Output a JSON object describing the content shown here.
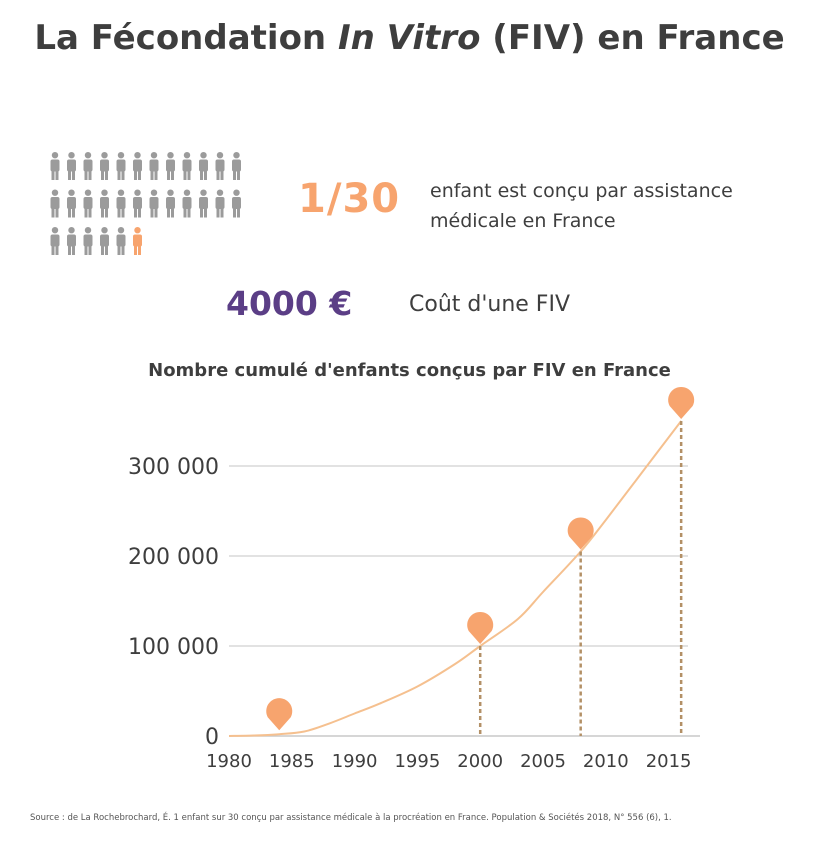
{
  "header": {
    "title_part1": "La Fécondation ",
    "title_italic": "In Vitro",
    "title_part2": " (FIV) en France"
  },
  "stats": {
    "fraction": "1/30",
    "fraction_text": "enfant est conçu par assistance médicale en France",
    "people_total": 30,
    "people_highlighted": 1,
    "person_color": "#9b9b9b",
    "highlight_color": "#f7a46e",
    "cost_value": "4000 €",
    "cost_label": "Coût d'une FIV"
  },
  "colors": {
    "accent_orange": "#f7a46e",
    "accent_purple": "#5b3e86",
    "marker_line": "#b39066",
    "text": "#3e3e3e"
  },
  "chart_data": {
    "type": "line",
    "title": "Nombre cumulé d'enfants conçus par FIV en France",
    "xlabel": "",
    "ylabel": "",
    "x_ticks": [
      1980,
      1985,
      1990,
      1995,
      2000,
      2005,
      2010,
      2015
    ],
    "y_ticks": [
      0,
      100000,
      200000,
      300000
    ],
    "y_tick_labels": [
      "0",
      "100 000",
      "200 000",
      "300 000"
    ],
    "xlim": [
      1980,
      2017.5
    ],
    "ylim": [
      0,
      360000
    ],
    "grid": true,
    "series": [
      {
        "x": [
          1980,
          1982,
          1984,
          1986,
          1988,
          1990,
          1992,
          1995,
          1998,
          2000,
          2003,
          2005,
          2008,
          2010,
          2013,
          2016
        ],
        "y": [
          0,
          500,
          2000,
          5000,
          14000,
          25000,
          36000,
          55000,
          80000,
          100000,
          130000,
          160000,
          205000,
          240000,
          295000,
          350000
        ],
        "color": "#f5c08f"
      }
    ],
    "markers": [
      {
        "x": 1984,
        "y": 2000,
        "dashed": false
      },
      {
        "x": 2000,
        "y": 100000,
        "dashed": true
      },
      {
        "x": 2008,
        "y": 205000,
        "dashed": true
      },
      {
        "x": 2016,
        "y": 350000,
        "dashed": true
      }
    ]
  },
  "footer": {
    "source": "Source : de La Rochebrochard, É. 1 enfant sur 30 conçu par assistance médicale à la procréation en France. Population & Sociétés 2018, N° 556 (6), 1."
  }
}
